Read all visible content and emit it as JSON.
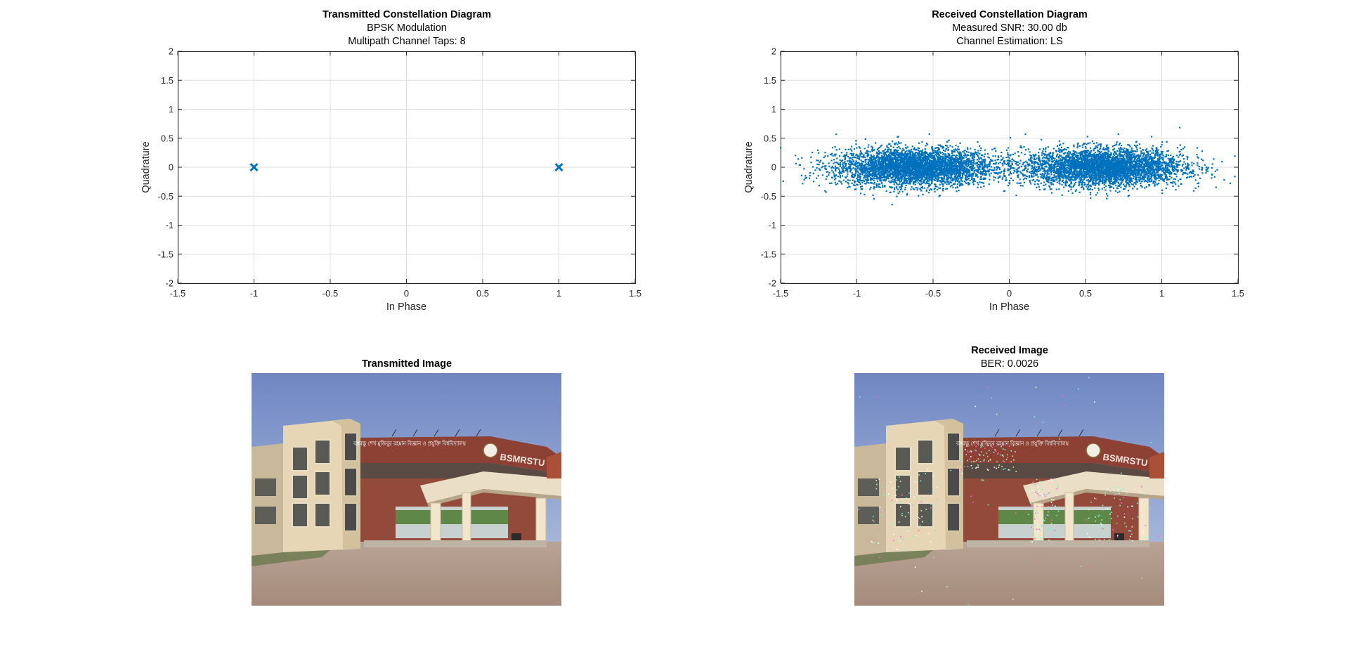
{
  "figure": {
    "background": "#ffffff",
    "marker_color": "#0072BD"
  },
  "chart_data": [
    {
      "type": "scatter",
      "title": "Transmitted Constellation Diagram",
      "subtitle_lines": [
        "BPSK Modulation",
        "Multipath Channel Taps: 8"
      ],
      "xlabel": "In Phase",
      "ylabel": "Quadrature",
      "xlim": [
        -1.5,
        1.5
      ],
      "ylim": [
        -2,
        2
      ],
      "xticks": [
        "-1.5",
        "-1",
        "-0.5",
        "0",
        "0.5",
        "1",
        "1.5"
      ],
      "yticks": [
        "2",
        "1.5",
        "1",
        "0.5",
        "0",
        "-0.5",
        "-1",
        "-1.5",
        "-2"
      ],
      "grid": true,
      "marker": "x",
      "series": [
        {
          "x": [
            -1,
            1
          ],
          "y": [
            0,
            0
          ]
        }
      ]
    },
    {
      "type": "scatter",
      "title": "Received Constellation Diagram",
      "subtitle_lines": [
        "Measured SNR: 30.00 db",
        "Channel Estimation: LS"
      ],
      "xlabel": "In Phase",
      "ylabel": "Quadrature",
      "xlim": [
        -1.5,
        1.5
      ],
      "ylim": [
        -2,
        2
      ],
      "xticks": [
        "-1.5",
        "-1",
        "-0.5",
        "0",
        "0.5",
        "1",
        "1.5"
      ],
      "yticks": [
        "2",
        "1.5",
        "1",
        "0.5",
        "0",
        "-0.5",
        "-1",
        "-1.5",
        "-2"
      ],
      "grid": true,
      "marker": "dot",
      "clusters": [
        {
          "center_x": -0.62,
          "center_y": 0.0,
          "spread_x": 0.26,
          "spread_y": 0.16,
          "x_range": [
            -1.5,
            0.1
          ],
          "y_range": [
            -0.8,
            0.7
          ]
        },
        {
          "center_x": 0.62,
          "center_y": 0.0,
          "spread_x": 0.26,
          "spread_y": 0.16,
          "x_range": [
            -0.1,
            1.5
          ],
          "y_range": [
            -0.6,
            0.75
          ]
        }
      ]
    }
  ],
  "images": {
    "transmitted": {
      "title": "Transmitted Image",
      "subtitle": "",
      "signage_bangla": "বঙ্গবন্ধু শেখ মুজিবুর রহমান বিজ্ঞান ও প্রযুক্তি বিশ্ববিদ্যালয়",
      "signage_english": "BSMRSTU"
    },
    "received": {
      "title": "Received Image",
      "subtitle": "BER: 0.0026",
      "signage_bangla": "বঙ্গবন্ধু শেখ মুজিবুর রহমান বিজ্ঞান ও প্রযুক্তি বিশ্ববিদ্যালয়",
      "signage_english": "BSMRSTU"
    }
  }
}
